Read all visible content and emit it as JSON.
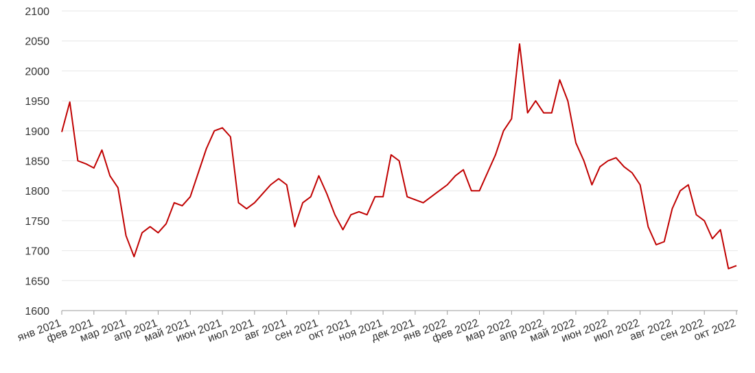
{
  "chart_data": {
    "type": "line",
    "categories": [
      "янв 2021",
      null,
      null,
      null,
      "фев 2021",
      null,
      null,
      null,
      "мар 2021",
      null,
      null,
      null,
      "апр 2021",
      null,
      null,
      null,
      "май 2021",
      null,
      null,
      null,
      "июн 2021",
      null,
      null,
      null,
      "июл 2021",
      null,
      null,
      null,
      "авг 2021",
      null,
      null,
      null,
      "сен 2021",
      null,
      null,
      null,
      "окт 2021",
      null,
      null,
      null,
      "ноя 2021",
      null,
      null,
      null,
      "дек 2021",
      null,
      null,
      null,
      "янв 2022",
      null,
      null,
      null,
      "фев 2022",
      null,
      null,
      null,
      "мар 2022",
      null,
      null,
      null,
      "апр 2022",
      null,
      null,
      null,
      "май 2022",
      null,
      null,
      null,
      "июн 2022",
      null,
      null,
      null,
      "июл 2022",
      null,
      null,
      null,
      "авг 2022",
      null,
      null,
      null,
      "сен 2022",
      null,
      null,
      null,
      "окт 2022"
    ],
    "series": [
      {
        "name": null,
        "color": "#c00000",
        "values": [
          1898,
          1948,
          1850,
          1845,
          1838,
          1868,
          1825,
          1805,
          1725,
          1690,
          1730,
          1740,
          1730,
          1745,
          1780,
          1775,
          1790,
          1830,
          1870,
          1900,
          1905,
          1890,
          1780,
          1770,
          1780,
          1795,
          1810,
          1820,
          1810,
          1740,
          1780,
          1790,
          1825,
          1795,
          1760,
          1735,
          1760,
          1765,
          1760,
          1790,
          1790,
          1860,
          1850,
          1790,
          1785,
          1780,
          1790,
          1800,
          1810,
          1825,
          1835,
          1800,
          1800,
          1830,
          1860,
          1900,
          1920,
          2045,
          1930,
          1950,
          1930,
          1930,
          1985,
          1950,
          1880,
          1850,
          1810,
          1840,
          1850,
          1855,
          1840,
          1830,
          1810,
          1740,
          1710,
          1715,
          1770,
          1800,
          1810,
          1760,
          1750,
          1720,
          1735,
          1670,
          1675
        ]
      }
    ],
    "ylim": [
      1600,
      2100
    ],
    "yticks": [
      1600,
      1650,
      1700,
      1750,
      1800,
      1850,
      1900,
      1950,
      2000,
      2050,
      2100
    ],
    "grid": true
  }
}
